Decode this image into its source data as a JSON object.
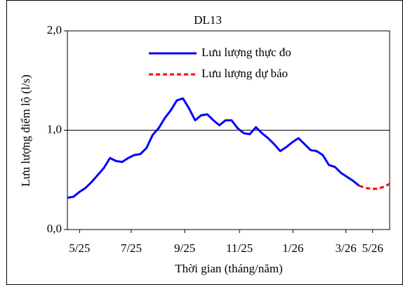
{
  "chart_data": {
    "type": "line",
    "title": "DL13",
    "y_label": "Lưu lượng điểm lộ (l/s)",
    "x_label": "Thời gian  (tháng/năm)",
    "x": [
      0,
      1,
      2,
      3,
      4,
      5,
      6,
      7,
      8,
      9,
      10,
      11,
      12,
      13,
      14,
      15,
      16,
      17,
      18,
      19,
      20,
      21,
      22,
      23,
      24,
      25,
      26,
      27,
      28,
      29,
      30,
      31,
      32,
      33,
      34,
      35,
      36,
      37,
      38,
      39,
      40,
      41,
      42,
      43,
      44,
      45,
      46,
      47,
      48,
      49,
      50,
      51,
      52,
      53
    ],
    "xlim": [
      0,
      53
    ],
    "xticks": [
      {
        "value": 2,
        "label": "5/25"
      },
      {
        "value": 10.5,
        "label": "7/25"
      },
      {
        "value": 19.3,
        "label": "9/25"
      },
      {
        "value": 28.3,
        "label": "11/25"
      },
      {
        "value": 37.1,
        "label": "1/26"
      },
      {
        "value": 45.8,
        "label": "3/26"
      },
      {
        "value": 50.2,
        "label": "5/26"
      }
    ],
    "ylim": [
      0,
      2
    ],
    "yticks": [
      {
        "value": 0,
        "label": "0,0"
      },
      {
        "value": 1,
        "label": "1,0"
      },
      {
        "value": 2,
        "label": "2,0"
      }
    ],
    "grid": true,
    "legend": "top",
    "series": [
      {
        "name": "Lưu lượng thực đo",
        "color": "#0000ff",
        "dash": false,
        "values": [
          0.32,
          0.33,
          0.38,
          0.42,
          0.48,
          0.55,
          0.62,
          0.72,
          0.69,
          0.68,
          0.72,
          0.75,
          0.76,
          0.82,
          0.95,
          1.02,
          1.12,
          1.2,
          1.3,
          1.32,
          1.22,
          1.1,
          1.15,
          1.16,
          1.1,
          1.05,
          1.1,
          1.1,
          1.02,
          0.97,
          0.96,
          1.03,
          0.97,
          0.92,
          0.86,
          0.79,
          0.83,
          0.88,
          0.92,
          0.86,
          0.8,
          0.79,
          0.75,
          0.65,
          0.63,
          0.57,
          0.53,
          0.49,
          0.44,
          null,
          null,
          null,
          null,
          null
        ]
      },
      {
        "name": "Lưu lượng dự báo",
        "color": "#ff0000",
        "dash": true,
        "values": [
          null,
          null,
          null,
          null,
          null,
          null,
          null,
          null,
          null,
          null,
          null,
          null,
          null,
          null,
          null,
          null,
          null,
          null,
          null,
          null,
          null,
          null,
          null,
          null,
          null,
          null,
          null,
          null,
          null,
          null,
          null,
          null,
          null,
          null,
          null,
          null,
          null,
          null,
          null,
          null,
          null,
          null,
          null,
          null,
          null,
          null,
          null,
          null,
          0.44,
          0.42,
          0.41,
          0.41,
          0.43,
          0.46
        ]
      }
    ]
  }
}
